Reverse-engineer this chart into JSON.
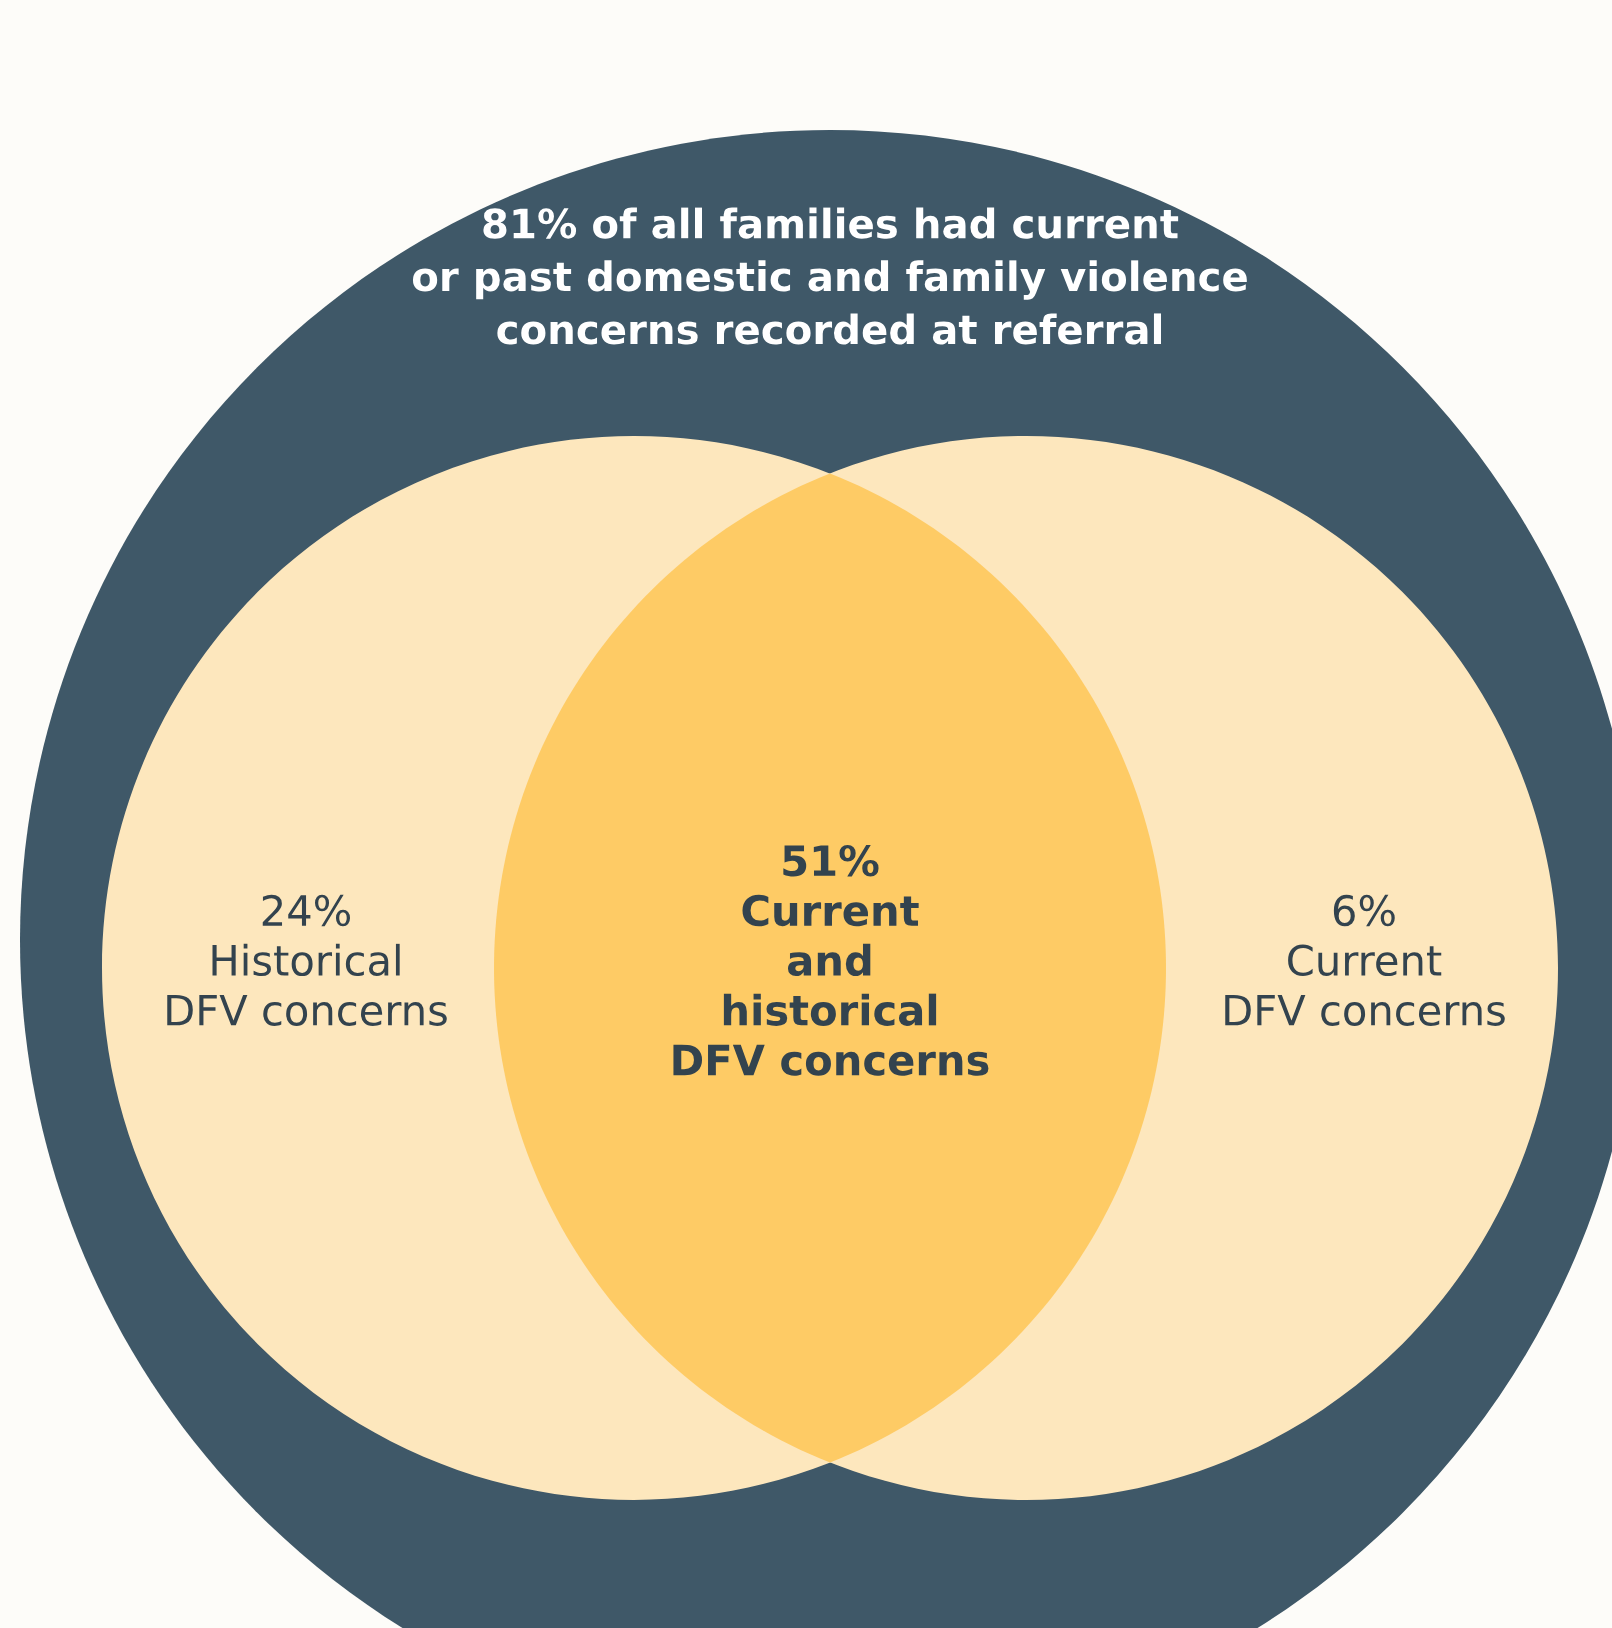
{
  "chart_data": {
    "type": "other",
    "title": "81% of all families had current\nor past domestic and family violence\nconcerns recorded at referral",
    "categories": [
      "Historical\nDFV concerns",
      "Current\nand\nhistorical\nDFV concerns",
      "Current\nDFV concerns"
    ],
    "values": [
      24,
      51,
      6
    ],
    "value_labels": [
      "24%",
      "51%",
      "6%"
    ],
    "colors": [
      "#fde7bd",
      "#fecb65",
      "#fde7bd"
    ]
  }
}
